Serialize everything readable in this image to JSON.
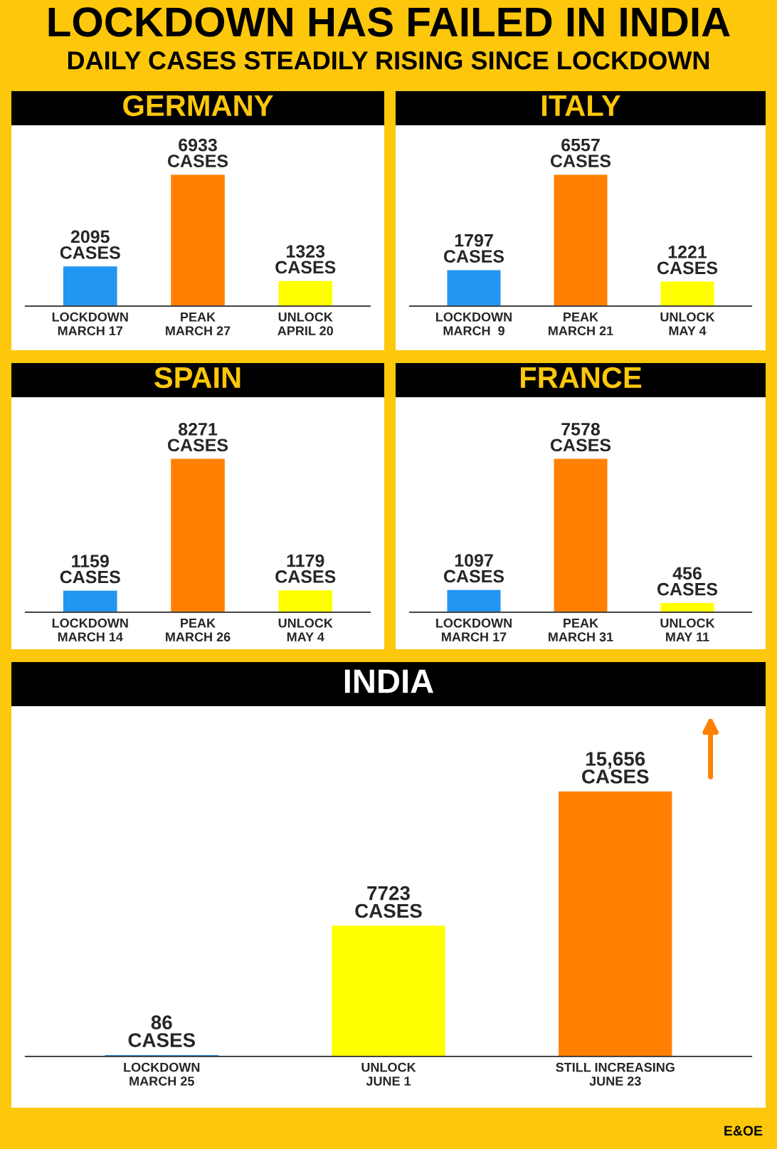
{
  "chart_data": [
    {
      "type": "other",
      "title": "LOCKDOWN HAS FAILED IN INDIA",
      "subtitle": "DAILY CASES STEADILY RISING SINCE LOCKDOWN",
      "annotations": [
        "E&OE"
      ]
    },
    {
      "type": "bar",
      "title": "GERMANY",
      "categories": [
        "LOCKDOWN\nMARCH 17",
        "PEAK\nMARCH 27",
        "UNLOCK\nAPRIL 20"
      ],
      "values": [
        2095,
        6933,
        1323
      ],
      "colors": [
        "#2196f3",
        "#ff8000",
        "#ffff00"
      ],
      "value_labels": [
        "2095\nCASES",
        "6933\nCASES",
        "1323\nCASES"
      ]
    },
    {
      "type": "bar",
      "title": "ITALY",
      "categories": [
        "LOCKDOWN\nMARCH  9",
        "PEAK\nMARCH 21",
        "UNLOCK\nMAY 4"
      ],
      "values": [
        1797,
        6557,
        1221
      ],
      "colors": [
        "#2196f3",
        "#ff8000",
        "#ffff00"
      ],
      "value_labels": [
        "1797\nCASES",
        "6557\nCASES",
        "1221\nCASES"
      ]
    },
    {
      "type": "bar",
      "title": "SPAIN",
      "categories": [
        "LOCKDOWN\nMARCH 14",
        "PEAK\nMARCH 26",
        "UNLOCK\nMAY 4"
      ],
      "values": [
        1159,
        8271,
        1179
      ],
      "colors": [
        "#2196f3",
        "#ff8000",
        "#ffff00"
      ],
      "value_labels": [
        "1159\nCASES",
        "8271\nCASES",
        "1179\nCASES"
      ]
    },
    {
      "type": "bar",
      "title": "FRANCE",
      "categories": [
        "LOCKDOWN\nMARCH 17",
        "PEAK\nMARCH 31",
        "UNLOCK\nMAY 11"
      ],
      "values": [
        1097,
        7578,
        456
      ],
      "colors": [
        "#2196f3",
        "#ff8000",
        "#ffff00"
      ],
      "value_labels": [
        "1097\nCASES",
        "7578\nCASES",
        "456\nCASES"
      ]
    },
    {
      "type": "bar",
      "title": "INDIA",
      "categories": [
        "LOCKDOWN\nMARCH 25",
        "UNLOCK\nJUNE 1",
        "STILL INCREASING\nJUNE 23"
      ],
      "values": [
        86,
        7723,
        15656
      ],
      "colors": [
        "#2196f3",
        "#ffff00",
        "#ff8000"
      ],
      "value_labels": [
        "86\nCASES",
        "7723\nCASES",
        "15,656\nCASES"
      ]
    }
  ]
}
